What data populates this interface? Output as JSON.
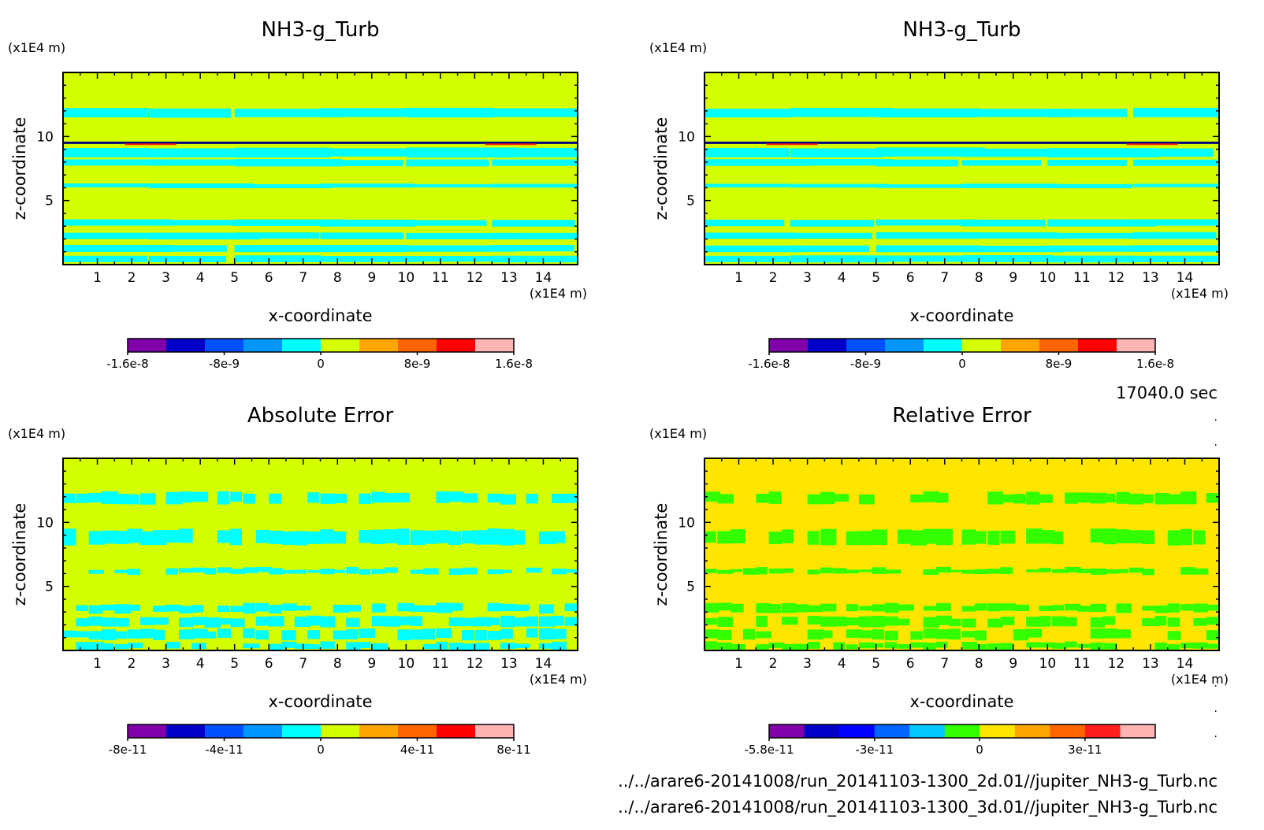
{
  "time_label": "17040.0 sec",
  "files": [
    "../../arare6-20141008/run_20141103-1300_2d.01//jupiter_NH3-g_Turb.nc",
    "../../arare6-20141008/run_20141103-1300_3d.01//jupiter_NH3-g_Turb.nc"
  ],
  "chart_data": [
    {
      "type": "heatmap",
      "title": "NH3-g_Turb",
      "xlabel": "x-coordinate",
      "ylabel": "z-coordinate",
      "x_unit": "(x1E4 m)",
      "z_unit": "(x1E4 m)",
      "xlim": [
        0,
        15
      ],
      "ylim": [
        0,
        15
      ],
      "x_ticks": [
        1,
        2,
        3,
        4,
        5,
        6,
        7,
        8,
        9,
        10,
        11,
        12,
        13,
        14
      ],
      "y_ticks": [
        5,
        10
      ],
      "background_color": "#d4ff00",
      "band_color": "#00ffff",
      "colorbar": {
        "colors": [
          "#8000aa",
          "#0000c8",
          "#0050ff",
          "#0096ff",
          "#00ffff",
          "#d4ff00",
          "#ffa500",
          "#ff6400",
          "#ff0000",
          "#ffb4b4"
        ],
        "tick_labels": [
          "-1.6e-8",
          "-8e-9",
          "0",
          "8e-9",
          "1.6e-8"
        ]
      }
    },
    {
      "type": "heatmap",
      "title": "NH3-g_Turb",
      "xlabel": "x-coordinate",
      "ylabel": "z-coordinate",
      "x_unit": "(x1E4 m)",
      "z_unit": "(x1E4 m)",
      "xlim": [
        0,
        15
      ],
      "ylim": [
        0,
        15
      ],
      "x_ticks": [
        1,
        2,
        3,
        4,
        5,
        6,
        7,
        8,
        9,
        10,
        11,
        12,
        13,
        14
      ],
      "y_ticks": [
        5,
        10
      ],
      "background_color": "#d4ff00",
      "band_color": "#00ffff",
      "colorbar": {
        "colors": [
          "#8000aa",
          "#0000c8",
          "#0050ff",
          "#0096ff",
          "#00ffff",
          "#d4ff00",
          "#ffa500",
          "#ff6400",
          "#ff0000",
          "#ffb4b4"
        ],
        "tick_labels": [
          "-1.6e-8",
          "-8e-9",
          "0",
          "8e-9",
          "1.6e-8"
        ]
      }
    },
    {
      "type": "heatmap",
      "title": "Absolute Error",
      "xlabel": "x-coordinate",
      "ylabel": "z-coordinate",
      "x_unit": "(x1E4 m)",
      "z_unit": "(x1E4 m)",
      "xlim": [
        0,
        15
      ],
      "ylim": [
        0,
        15
      ],
      "x_ticks": [
        1,
        2,
        3,
        4,
        5,
        6,
        7,
        8,
        9,
        10,
        11,
        12,
        13,
        14
      ],
      "y_ticks": [
        5,
        10
      ],
      "background_color": "#d4ff00",
      "band_color": "#00ffff",
      "colorbar": {
        "colors": [
          "#8000aa",
          "#0000c8",
          "#0050ff",
          "#0096ff",
          "#00ffff",
          "#d4ff00",
          "#ffa500",
          "#ff6400",
          "#ff0000",
          "#ffb4b4"
        ],
        "tick_labels": [
          "-8e-11",
          "-4e-11",
          "0",
          "4e-11",
          "8e-11"
        ]
      }
    },
    {
      "type": "heatmap",
      "title": "Relative Error",
      "xlabel": "x-coordinate",
      "ylabel": "z-coordinate",
      "x_unit": "(x1E4 m)",
      "z_unit": "(x1E4 m)",
      "xlim": [
        0,
        15
      ],
      "ylim": [
        0,
        15
      ],
      "x_ticks": [
        1,
        2,
        3,
        4,
        5,
        6,
        7,
        8,
        9,
        10,
        11,
        12,
        13,
        14
      ],
      "y_ticks": [
        5,
        10
      ],
      "background_color": "#ffe600",
      "band_color": "#32ff00",
      "colorbar": {
        "colors": [
          "#8000aa",
          "#0000c8",
          "#0000ff",
          "#0064ff",
          "#00c8ff",
          "#32ff00",
          "#ffe600",
          "#ffa500",
          "#ff6400",
          "#ff1e1e",
          "#ffb4b4"
        ],
        "tick_labels": [
          "-5.8e-11",
          "-3e-11",
          "0",
          "3e-11"
        ]
      }
    }
  ]
}
